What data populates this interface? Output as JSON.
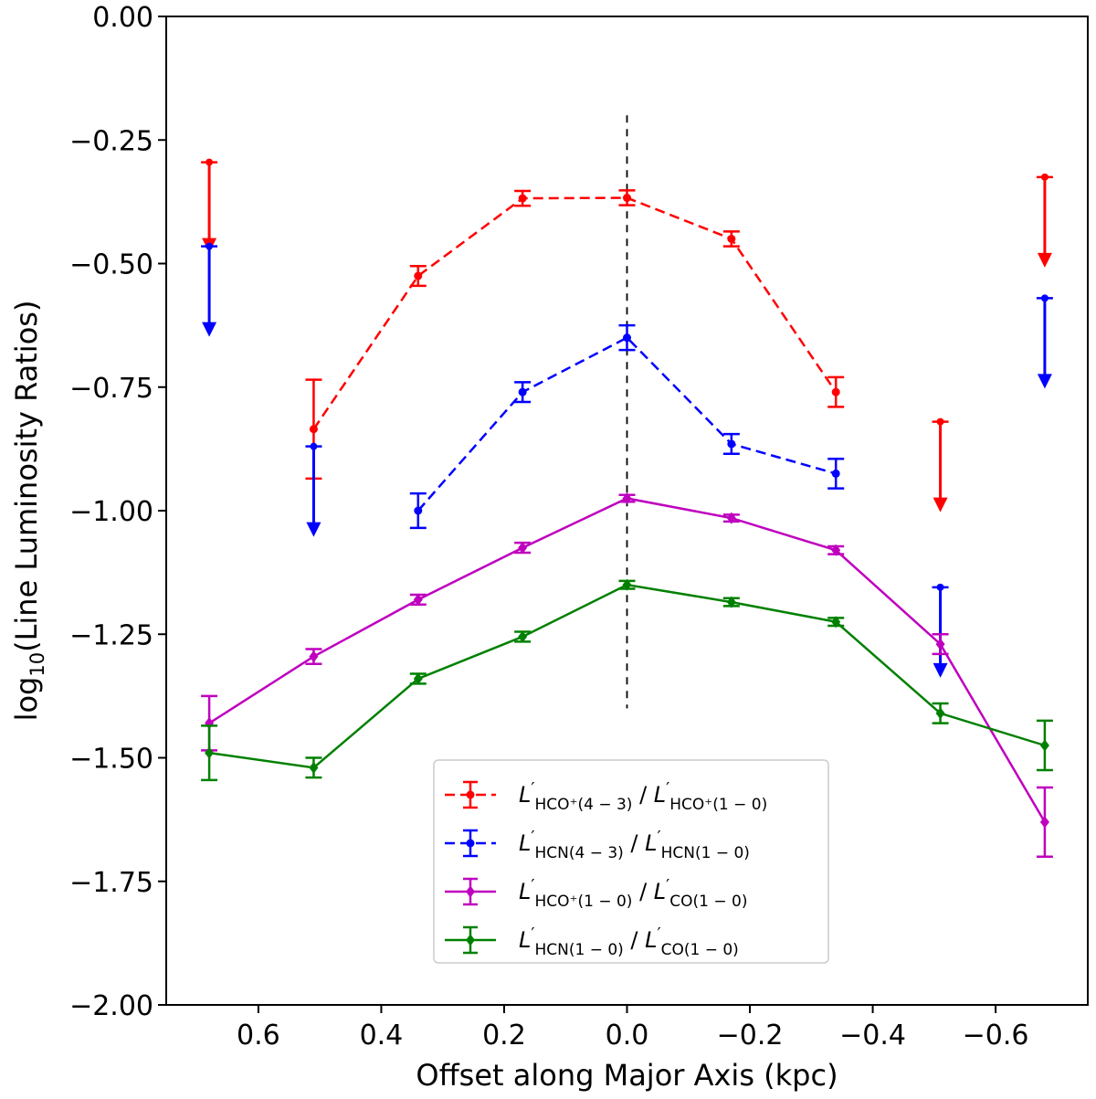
{
  "chart_data": {
    "type": "line",
    "title": "",
    "xlabel": "Offset along Major Axis (kpc)",
    "ylabel": "log10(Line Luminosity Ratios)",
    "ylabel_parts": {
      "prefix": "log",
      "sub": "10",
      "suffix": "(Line Luminosity Ratios)"
    },
    "xlim": [
      0.75,
      -0.75
    ],
    "ylim": [
      -2.0,
      0.0
    ],
    "x_ticks": [
      0.6,
      0.4,
      0.2,
      0.0,
      -0.2,
      -0.4,
      -0.6
    ],
    "x_tick_labels": [
      "0.6",
      "0.4",
      "0.2",
      "0.0",
      "−0.2",
      "−0.4",
      "−0.6"
    ],
    "y_ticks": [
      0.0,
      -0.25,
      -0.5,
      -0.75,
      -1.0,
      -1.25,
      -1.5,
      -1.75,
      -2.0
    ],
    "y_tick_labels": [
      "0.00",
      "−0.25",
      "−0.50",
      "−0.75",
      "−1.00",
      "−1.25",
      "−1.50",
      "−1.75",
      "−2.00"
    ],
    "center_line": {
      "x": 0.0,
      "y_range": [
        -0.2,
        -1.4
      ],
      "color": "#000000"
    },
    "legend_placement": "lower-center",
    "series": [
      {
        "name": "HCO+(4-3) / HCO+(1-0)",
        "legend": {
          "num_sub": "HCO⁺(4 − 3)",
          "den_sub": "HCO⁺(1 − 0)"
        },
        "color": "#ff0000",
        "dash": true,
        "marker": "circle",
        "points": [
          {
            "x": 0.51,
            "y": -0.835,
            "err": 0.1
          },
          {
            "x": 0.34,
            "y": -0.525,
            "err": 0.02
          },
          {
            "x": 0.17,
            "y": -0.368,
            "err": 0.015
          },
          {
            "x": 0.0,
            "y": -0.367,
            "err": 0.015
          },
          {
            "x": -0.17,
            "y": -0.45,
            "err": 0.015
          },
          {
            "x": -0.34,
            "y": -0.76,
            "err": 0.03
          }
        ],
        "upper_limits": [
          {
            "x": 0.68,
            "y": -0.295
          },
          {
            "x": -0.51,
            "y": -0.82
          },
          {
            "x": -0.68,
            "y": -0.325
          }
        ]
      },
      {
        "name": "HCN(4-3) / HCN(1-0)",
        "legend": {
          "num_sub": "HCN(4 − 3)",
          "den_sub": "HCN(1 − 0)"
        },
        "color": "#0000ff",
        "dash": true,
        "marker": "circle",
        "points": [
          {
            "x": 0.34,
            "y": -1.0,
            "err": 0.035
          },
          {
            "x": 0.17,
            "y": -0.76,
            "err": 0.02
          },
          {
            "x": 0.0,
            "y": -0.65,
            "err": 0.025
          },
          {
            "x": -0.17,
            "y": -0.865,
            "err": 0.02
          },
          {
            "x": -0.34,
            "y": -0.925,
            "err": 0.03
          }
        ],
        "upper_limits": [
          {
            "x": 0.68,
            "y": -0.465
          },
          {
            "x": 0.51,
            "y": -0.87
          },
          {
            "x": -0.51,
            "y": -1.155
          },
          {
            "x": -0.68,
            "y": -0.57
          }
        ]
      },
      {
        "name": "HCO+(1-0) / CO(1-0)",
        "legend": {
          "num_sub": "HCO⁺(1 − 0)",
          "den_sub": "CO(1 − 0)"
        },
        "color": "#bf00bf",
        "dash": false,
        "marker": "diamond",
        "points": [
          {
            "x": 0.68,
            "y": -1.43,
            "err": 0.055
          },
          {
            "x": 0.51,
            "y": -1.295,
            "err": 0.015
          },
          {
            "x": 0.34,
            "y": -1.18,
            "err": 0.01
          },
          {
            "x": 0.17,
            "y": -1.075,
            "err": 0.01
          },
          {
            "x": 0.0,
            "y": -0.975,
            "err": 0.007
          },
          {
            "x": -0.17,
            "y": -1.015,
            "err": 0.007
          },
          {
            "x": -0.34,
            "y": -1.08,
            "err": 0.008
          },
          {
            "x": -0.51,
            "y": -1.27,
            "err": 0.02
          },
          {
            "x": -0.68,
            "y": -1.63,
            "err": 0.07
          }
        ],
        "upper_limits": []
      },
      {
        "name": "HCN(1-0) / CO(1-0)",
        "legend": {
          "num_sub": "HCN(1 − 0)",
          "den_sub": "CO(1 − 0)"
        },
        "color": "#008000",
        "dash": false,
        "marker": "diamond",
        "points": [
          {
            "x": 0.68,
            "y": -1.49,
            "err": 0.055
          },
          {
            "x": 0.51,
            "y": -1.52,
            "err": 0.02
          },
          {
            "x": 0.34,
            "y": -1.34,
            "err": 0.01
          },
          {
            "x": 0.17,
            "y": -1.255,
            "err": 0.01
          },
          {
            "x": 0.0,
            "y": -1.15,
            "err": 0.008
          },
          {
            "x": -0.17,
            "y": -1.185,
            "err": 0.008
          },
          {
            "x": -0.34,
            "y": -1.225,
            "err": 0.008
          },
          {
            "x": -0.51,
            "y": -1.41,
            "err": 0.02
          },
          {
            "x": -0.68,
            "y": -1.475,
            "err": 0.05
          }
        ],
        "upper_limits": []
      }
    ]
  }
}
